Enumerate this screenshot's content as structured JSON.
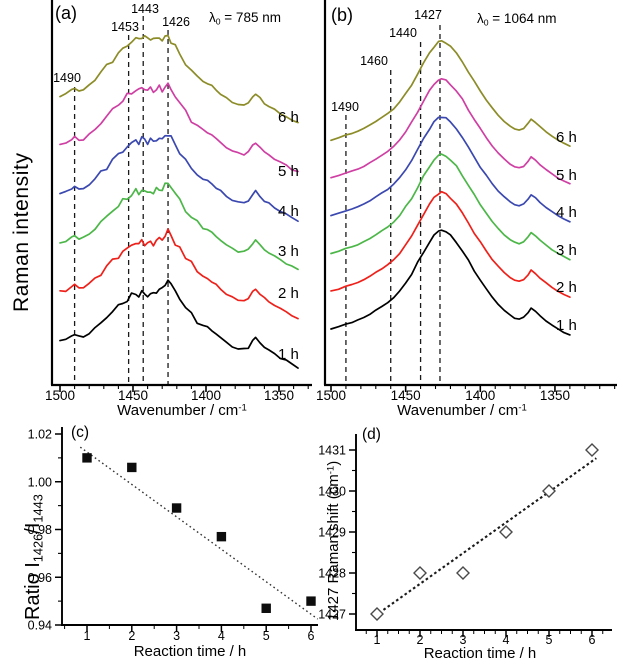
{
  "labels": {
    "panel_a_letter": "(a)",
    "panel_b_letter": "(b)",
    "panel_c_letter": "(c)",
    "panel_d_letter": "(d)",
    "lambda_symbol": "λ",
    "lambda_sub": "0",
    "lambda_a_rest": " = 785 nm",
    "lambda_b_rest": " = 1064 nm",
    "raman_intensity": "Raman intensity",
    "wavenumber_text": "Wavenumber / cm",
    "wavenumber_sup": "-1",
    "ratio_prefix": "Ratio I",
    "ratio_sub1": "1426",
    "ratio_mid": "/I",
    "ratio_sub2": "1443",
    "d_ylabel_text": "1427 Raman shift (cm",
    "d_ylabel_sup": "-1",
    "d_ylabel_close": ")",
    "reaction_time_c": "Reaction time / h",
    "reaction_time_d": "Reaction time / h"
  },
  "chart_data": [
    {
      "panel": "a",
      "type": "line",
      "description": "Stacked Raman spectra vs reaction time, excitation 785 nm",
      "excitation": "λ0 = 785 nm",
      "x_axis": {
        "label": "Wavenumber / cm-1",
        "ticks": [
          1500,
          1450,
          1400,
          1350
        ],
        "tick_labels": [
          "1500",
          "1450",
          "1400",
          "1350"
        ],
        "minor_step": 10,
        "range": [
          1500,
          1336
        ],
        "reversed": true
      },
      "y_axis": {
        "label": "Raman intensity",
        "ticks": []
      },
      "marked_peaks": [
        1490,
        1453,
        1443,
        1426
      ],
      "marked_peak_labels": [
        "1490",
        "1453",
        "1443",
        "1426"
      ],
      "series": [
        {
          "name": "1 h",
          "color": "#000000"
        },
        {
          "name": "2 h",
          "color": "#ee2019"
        },
        {
          "name": "3 h",
          "color": "#4cb748"
        },
        {
          "name": "4 h",
          "color": "#3a48b0"
        },
        {
          "name": "5 h",
          "color": "#cf3fa3"
        },
        {
          "name": "6 h",
          "color": "#8c8c28"
        }
      ],
      "stacking": "curves offset vertically, 1 h bottom to 6 h top",
      "profile_wavenumbers": [
        1500,
        1496,
        1492,
        1490,
        1487,
        1484,
        1480,
        1476,
        1472,
        1468,
        1464,
        1460,
        1457,
        1454,
        1451,
        1448,
        1446,
        1444,
        1442,
        1440,
        1438,
        1436,
        1434,
        1432,
        1430,
        1428,
        1426,
        1424,
        1421,
        1418,
        1414,
        1410,
        1406,
        1402,
        1399,
        1396,
        1393,
        1390,
        1386,
        1382,
        1378,
        1374,
        1371,
        1368,
        1366,
        1363,
        1360,
        1357,
        1353,
        1349,
        1345,
        1341,
        1337
      ],
      "profile_intensity_1h": [
        0.33,
        0.34,
        0.38,
        0.4,
        0.37,
        0.37,
        0.41,
        0.46,
        0.52,
        0.58,
        0.64,
        0.69,
        0.73,
        0.76,
        0.8,
        0.83,
        0.8,
        0.84,
        0.82,
        0.8,
        0.83,
        0.81,
        0.85,
        0.88,
        0.86,
        0.93,
        0.97,
        0.92,
        0.85,
        0.78,
        0.68,
        0.6,
        0.54,
        0.49,
        0.47,
        0.44,
        0.4,
        0.36,
        0.31,
        0.27,
        0.24,
        0.24,
        0.26,
        0.33,
        0.36,
        0.31,
        0.26,
        0.23,
        0.19,
        0.15,
        0.12,
        0.08,
        0.05
      ],
      "profile_intensity_6h": [
        0.33,
        0.35,
        0.39,
        0.41,
        0.38,
        0.39,
        0.44,
        0.5,
        0.57,
        0.64,
        0.71,
        0.77,
        0.82,
        0.86,
        0.9,
        0.93,
        0.92,
        0.96,
        0.94,
        0.93,
        0.94,
        0.92,
        0.93,
        0.94,
        0.92,
        0.94,
        0.96,
        0.91,
        0.84,
        0.77,
        0.67,
        0.59,
        0.53,
        0.48,
        0.46,
        0.43,
        0.39,
        0.35,
        0.3,
        0.26,
        0.24,
        0.23,
        0.25,
        0.32,
        0.35,
        0.3,
        0.25,
        0.22,
        0.18,
        0.14,
        0.11,
        0.07,
        0.04
      ]
    },
    {
      "panel": "b",
      "type": "line",
      "description": "Stacked Raman spectra vs reaction time, excitation 1064 nm",
      "excitation": "λ0 = 1064 nm",
      "x_axis": {
        "label": "Wavenumber / cm-1",
        "ticks": [
          1500,
          1450,
          1400,
          1350
        ],
        "tick_labels": [
          "1500",
          "1450",
          "1400",
          "1350"
        ],
        "minor_step": 10,
        "range": [
          1500,
          1340
        ],
        "reversed": true
      },
      "y_axis": {
        "label": "",
        "ticks": []
      },
      "marked_peaks": [
        1490,
        1460,
        1440,
        1427
      ],
      "marked_peak_labels": [
        "1490",
        "1460",
        "1440",
        "1427"
      ],
      "series": [
        {
          "name": "1 h",
          "color": "#000000"
        },
        {
          "name": "2 h",
          "color": "#ee2019"
        },
        {
          "name": "3 h",
          "color": "#4cb748"
        },
        {
          "name": "4 h",
          "color": "#3a48b0"
        },
        {
          "name": "5 h",
          "color": "#cf3fa3"
        },
        {
          "name": "6 h",
          "color": "#8c8c28"
        }
      ],
      "stacking": "curves offset vertically, 1 h bottom to 6 h top",
      "profile_wavenumbers": [
        1500,
        1495,
        1490,
        1486,
        1482,
        1478,
        1474,
        1470,
        1466,
        1462,
        1458,
        1454,
        1450,
        1446,
        1442,
        1438,
        1434,
        1431,
        1428,
        1426,
        1423,
        1420,
        1416,
        1412,
        1408,
        1404,
        1400,
        1396,
        1392,
        1388,
        1384,
        1380,
        1377,
        1374,
        1371,
        1368,
        1366,
        1363,
        1360,
        1356,
        1352,
        1348,
        1344,
        1340
      ],
      "profile_intensity": [
        0.1,
        0.12,
        0.145,
        0.16,
        0.18,
        0.205,
        0.235,
        0.27,
        0.305,
        0.34,
        0.385,
        0.445,
        0.52,
        0.6,
        0.7,
        0.8,
        0.89,
        0.95,
        0.99,
        1.0,
        0.985,
        0.95,
        0.89,
        0.81,
        0.72,
        0.63,
        0.545,
        0.465,
        0.39,
        0.325,
        0.27,
        0.225,
        0.2,
        0.19,
        0.205,
        0.25,
        0.29,
        0.26,
        0.22,
        0.175,
        0.135,
        0.1,
        0.07,
        0.045
      ]
    },
    {
      "panel": "c",
      "type": "scatter",
      "x_label": "Reaction time / h",
      "y_label": "Ratio I1426/I1443",
      "x": [
        1,
        2,
        3,
        4,
        5,
        6
      ],
      "y": [
        1.01,
        1.006,
        0.989,
        0.977,
        0.947,
        0.95
      ],
      "x_ticks": [
        1,
        2,
        3,
        4,
        5,
        6
      ],
      "x_tick_labels": [
        "1",
        "2",
        "3",
        "4",
        "5",
        "6"
      ],
      "y_ticks": [
        1.02,
        1.0,
        0.98,
        0.96,
        0.94
      ],
      "y_tick_labels": [
        "1.02",
        "1.00",
        "0.98",
        "0.96",
        "0.94"
      ],
      "ylim": [
        0.94,
        1.02
      ],
      "marker": "filled-square",
      "marker_color": "#0d0d0d",
      "trend_line": {
        "style": "dotted",
        "x1": 0.85,
        "y1": 1.0145,
        "x2": 6.15,
        "y2": 0.9425
      }
    },
    {
      "panel": "d",
      "type": "scatter",
      "x_label": "Reaction time / h",
      "y_label": "1427 Raman shift (cm-1)",
      "x": [
        1,
        2,
        3,
        4,
        5,
        6
      ],
      "y": [
        1427,
        1428,
        1428,
        1429,
        1430,
        1431
      ],
      "x_ticks": [
        1,
        2,
        3,
        4,
        5,
        6
      ],
      "x_tick_labels": [
        "1",
        "2",
        "3",
        "4",
        "5",
        "6"
      ],
      "y_ticks": [
        1431,
        1430,
        1429,
        1428,
        1427
      ],
      "y_tick_labels": [
        "1431",
        "1430",
        "1429",
        "1428",
        "1427"
      ],
      "ylim": [
        1426.7,
        1431.4
      ],
      "marker": "open-diamond",
      "marker_color": "#4a4a4a",
      "trend_line": {
        "style": "bold-dotted",
        "x1": 1.15,
        "y1": 1427.1,
        "x2": 6.1,
        "y2": 1430.8
      }
    }
  ]
}
